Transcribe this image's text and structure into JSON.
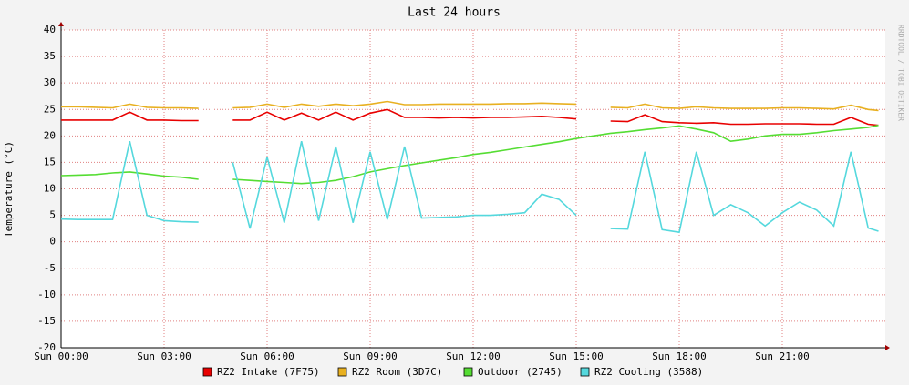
{
  "chart_data": {
    "type": "line",
    "title": "Last 24 hours",
    "y_label": "Temperature (°C)",
    "side_text": "RRDTOOL / TOBI OETIKER",
    "x": [
      0,
      0.5,
      1,
      1.5,
      2,
      2.5,
      3,
      3.5,
      4,
      4.5,
      5,
      5.5,
      6,
      6.5,
      7,
      7.5,
      8,
      8.5,
      9,
      9.5,
      10,
      10.5,
      11,
      11.5,
      12,
      12.5,
      13,
      13.5,
      14,
      14.5,
      15,
      15.5,
      16,
      16.5,
      17,
      17.5,
      18,
      18.5,
      19,
      19.5,
      20,
      20.5,
      21,
      21.5,
      22,
      22.5,
      23,
      23.5,
      23.8
    ],
    "xlim": [
      0,
      24
    ],
    "xticks": [
      {
        "value": 0,
        "label": "Sun 00:00"
      },
      {
        "value": 3,
        "label": "Sun 03:00"
      },
      {
        "value": 6,
        "label": "Sun 06:00"
      },
      {
        "value": 9,
        "label": "Sun 09:00"
      },
      {
        "value": 12,
        "label": "Sun 12:00"
      },
      {
        "value": 15,
        "label": "Sun 15:00"
      },
      {
        "value": 18,
        "label": "Sun 18:00"
      },
      {
        "value": 21,
        "label": "Sun 21:00"
      }
    ],
    "ylim": [
      -20,
      40
    ],
    "yticks": [
      -20,
      -15,
      -10,
      -5,
      0,
      5,
      10,
      15,
      20,
      25,
      30,
      35,
      40
    ],
    "grid": true,
    "series": [
      {
        "name": "RZ2 Intake (7F75)",
        "color": "#e80000",
        "values": [
          23,
          23,
          23,
          23,
          24.5,
          23,
          23,
          22.9,
          22.9,
          null,
          23,
          23,
          24.5,
          23,
          24.3,
          23,
          24.5,
          23,
          24.3,
          25,
          23.5,
          23.5,
          23.4,
          23.5,
          23.4,
          23.5,
          23.5,
          23.6,
          23.7,
          23.5,
          23.2,
          null,
          22.8,
          22.7,
          24,
          22.7,
          22.5,
          22.4,
          22.5,
          22.2,
          22.2,
          22.3,
          22.3,
          22.3,
          22.2,
          22.2,
          23.5,
          22.2,
          22
        ]
      },
      {
        "name": "RZ2 Room (3D7C)",
        "color": "#e8b020",
        "values": [
          25.5,
          25.5,
          25.4,
          25.3,
          26,
          25.4,
          25.3,
          25.3,
          25.2,
          null,
          25.3,
          25.4,
          26,
          25.4,
          26,
          25.6,
          26,
          25.7,
          26,
          26.5,
          25.9,
          25.9,
          26,
          26,
          26,
          26,
          26.1,
          26.1,
          26.2,
          26.1,
          26,
          null,
          25.4,
          25.3,
          26,
          25.3,
          25.2,
          25.5,
          25.3,
          25.2,
          25.2,
          25.2,
          25.3,
          25.3,
          25.2,
          25.1,
          25.8,
          25,
          24.8
        ]
      },
      {
        "name": "Outdoor (2745)",
        "color": "#55dd33",
        "values": [
          12.5,
          12.6,
          12.7,
          13,
          13.2,
          12.8,
          12.4,
          12.2,
          11.8,
          null,
          11.8,
          11.6,
          11.4,
          11.2,
          11,
          11.2,
          11.6,
          12.3,
          13.2,
          13.8,
          14.4,
          14.9,
          15.4,
          15.9,
          16.5,
          16.9,
          17.4,
          17.9,
          18.4,
          18.9,
          19.5,
          20,
          20.5,
          20.8,
          21.2,
          21.5,
          21.9,
          21.3,
          20.6,
          19,
          19.4,
          20,
          20.3,
          20.3,
          20.6,
          21,
          21.3,
          21.6,
          22
        ]
      },
      {
        "name": "RZ2 Cooling (3588)",
        "color": "#55d8dd",
        "values": [
          4.3,
          4.2,
          4.2,
          4.2,
          19,
          5,
          4,
          3.8,
          3.7,
          null,
          15,
          2.5,
          16,
          3.6,
          19,
          4,
          18,
          3.6,
          17,
          4.2,
          18,
          4.5,
          4.6,
          4.7,
          5,
          5,
          5.2,
          5.5,
          9,
          8,
          5,
          null,
          2.5,
          2.4,
          17,
          2.3,
          1.8,
          17,
          5,
          7,
          5.5,
          3,
          5.5,
          7.5,
          6,
          3,
          17,
          2.6,
          2
        ]
      }
    ]
  }
}
